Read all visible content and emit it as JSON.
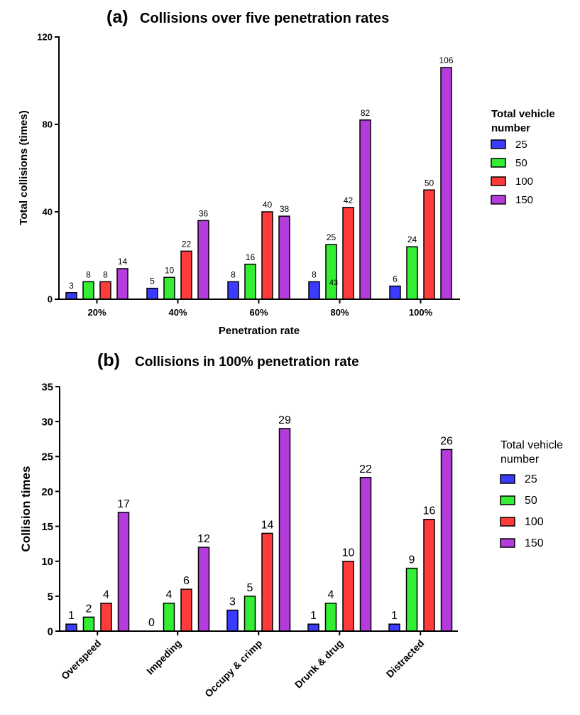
{
  "chart_data": [
    {
      "type": "bar",
      "panel_label": "(a)",
      "title": "Collisions over five penetration rates",
      "xlabel": "Penetration rate",
      "ylabel": "Total collisions (times)",
      "categories": [
        "20%",
        "40%",
        "60%",
        "80%",
        "100%"
      ],
      "ylim": [
        0,
        120
      ],
      "yticks": [
        "0",
        "40",
        "80",
        "120"
      ],
      "legend_title": "Total vehicle number",
      "legend_position": "right",
      "series": [
        {
          "name": "25",
          "color": "#3b3bff",
          "values": [
            3,
            5,
            8,
            8,
            6
          ]
        },
        {
          "name": "50",
          "color": "#33ee33",
          "values": [
            8,
            10,
            16,
            25,
            24
          ]
        },
        {
          "name": "100",
          "color": "#ff3b3b",
          "values": [
            8,
            22,
            40,
            42,
            50
          ]
        },
        {
          "name": "150",
          "color": "#b43bdc",
          "values": [
            14,
            36,
            38,
            82,
            106
          ]
        }
      ],
      "annotations": [
        {
          "text": "43",
          "category": "80%",
          "near_series": "50"
        }
      ]
    },
    {
      "type": "bar",
      "panel_label": "(b)",
      "title": "Collisions in 100% penetration rate",
      "xlabel": "",
      "ylabel": "Collision times",
      "categories": [
        "Overspeed",
        "Impeding",
        "Occupy & crimp",
        "Drunk & drug",
        "Distracted"
      ],
      "ylim": [
        0,
        35
      ],
      "yticks": [
        "0",
        "5",
        "10",
        "15",
        "20",
        "25",
        "30",
        "35"
      ],
      "legend_title": "Total vehicle number",
      "legend_position": "right",
      "series": [
        {
          "name": "25",
          "color": "#3b3bff",
          "values": [
            1,
            0,
            3,
            1,
            1
          ]
        },
        {
          "name": "50",
          "color": "#33ee33",
          "values": [
            2,
            4,
            5,
            4,
            9
          ]
        },
        {
          "name": "100",
          "color": "#ff3b3b",
          "values": [
            4,
            6,
            14,
            10,
            16
          ]
        },
        {
          "name": "150",
          "color": "#b43bdc",
          "values": [
            17,
            12,
            29,
            22,
            26
          ]
        }
      ]
    }
  ]
}
